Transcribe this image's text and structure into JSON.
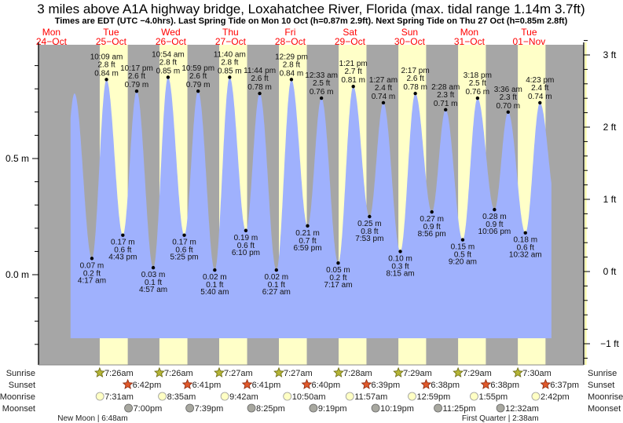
{
  "title": "3 miles above A1A highway bridge, Loxahatchee River, Florida (max. tidal range 1.14m 3.7ft)",
  "subtitle": "Times are EDT (UTC −4.0hrs). Last Spring Tide on Mon 10 Oct (h=0.87m 2.9ft). Next Spring Tide on Thu 27 Oct (h=0.85m 2.8ft)",
  "days": [
    {
      "dow": "Mon",
      "date": "24−Oct"
    },
    {
      "dow": "Tue",
      "date": "25−Oct"
    },
    {
      "dow": "Wed",
      "date": "26−Oct"
    },
    {
      "dow": "Thu",
      "date": "27−Oct"
    },
    {
      "dow": "Fri",
      "date": "28−Oct"
    },
    {
      "dow": "Sat",
      "date": "29−Oct"
    },
    {
      "dow": "Sun",
      "date": "30−Oct"
    },
    {
      "dow": "Mon",
      "date": "31−Oct"
    },
    {
      "dow": "Tue",
      "date": "01−Nov"
    }
  ],
  "colors": {
    "night": "#a6a6a6",
    "day": "#ffffc8",
    "water": "#9fb1fd",
    "day_label": "#ff0000",
    "sunrise": "#b5b536",
    "sunset": "#e0582a",
    "moonrise": "#ffffc4",
    "moonset": "#a8a8a0"
  },
  "chart_data": {
    "type": "area",
    "title": "3 miles above A1A highway bridge, Loxahatchee River, Florida",
    "y_left": {
      "unit": "m",
      "ylim": [
        -0.3,
        0.95
      ],
      "labels": [
        {
          "v": 0.5,
          "text": "0.5 m"
        },
        {
          "v": 0.0,
          "text": "0.0 m"
        }
      ]
    },
    "y_right": {
      "unit": "ft",
      "labels": [
        {
          "v": 3,
          "text": "3 ft"
        },
        {
          "v": 2,
          "text": "2 ft"
        },
        {
          "v": 1,
          "text": "1 ft"
        },
        {
          "v": 0,
          "text": "0 ft"
        },
        {
          "v": -1,
          "text": "−1 ft"
        }
      ]
    },
    "curve_range": {
      "start": {
        "day": 0,
        "hour": 19.7
      },
      "end": {
        "day": 8,
        "hour": 21.0
      }
    },
    "unlabeled_extremes": [
      {
        "day": 0,
        "hour": 15.2,
        "value": 0.12
      },
      {
        "day": 0,
        "hour": 21.3,
        "value": 0.78
      },
      {
        "day": 8,
        "hour": 23.0,
        "value": 0.3
      }
    ],
    "tides": [
      {
        "day": 1,
        "type": "low",
        "time": "4:17 am",
        "value": 0.07,
        "m": "0.07 m",
        "ft": "0.2 ft"
      },
      {
        "day": 1,
        "type": "high",
        "time": "10:09 am",
        "value": 0.84,
        "m": "0.84 m",
        "ft": "2.8 ft"
      },
      {
        "day": 1,
        "type": "low",
        "time": "4:43 pm",
        "value": 0.17,
        "m": "0.17 m",
        "ft": "0.6 ft"
      },
      {
        "day": 1,
        "type": "high",
        "time": "10:17 pm",
        "value": 0.79,
        "m": "0.79 m",
        "ft": "2.6 ft"
      },
      {
        "day": 2,
        "type": "low",
        "time": "4:57 am",
        "value": 0.03,
        "m": "0.03 m",
        "ft": "0.1 ft"
      },
      {
        "day": 2,
        "type": "high",
        "time": "10:54 am",
        "value": 0.85,
        "m": "0.85 m",
        "ft": "2.8 ft"
      },
      {
        "day": 2,
        "type": "low",
        "time": "5:25 pm",
        "value": 0.17,
        "m": "0.17 m",
        "ft": "0.6 ft"
      },
      {
        "day": 2,
        "type": "high",
        "time": "10:59 pm",
        "value": 0.79,
        "m": "0.79 m",
        "ft": "2.6 ft"
      },
      {
        "day": 3,
        "type": "low",
        "time": "5:40 am",
        "value": 0.02,
        "m": "0.02 m",
        "ft": "0.1 ft"
      },
      {
        "day": 3,
        "type": "high",
        "time": "11:40 am",
        "value": 0.85,
        "m": "0.85 m",
        "ft": "2.8 ft"
      },
      {
        "day": 3,
        "type": "low",
        "time": "6:10 pm",
        "value": 0.19,
        "m": "0.19 m",
        "ft": "0.6 ft"
      },
      {
        "day": 3,
        "type": "high",
        "time": "11:44 pm",
        "value": 0.78,
        "m": "0.78 m",
        "ft": "2.6 ft"
      },
      {
        "day": 4,
        "type": "low",
        "time": "6:27 am",
        "value": 0.02,
        "m": "0.02 m",
        "ft": "0.1 ft"
      },
      {
        "day": 4,
        "type": "high",
        "time": "12:29 pm",
        "value": 0.84,
        "m": "0.84 m",
        "ft": "2.8 ft"
      },
      {
        "day": 4,
        "type": "low",
        "time": "6:59 pm",
        "value": 0.21,
        "m": "0.21 m",
        "ft": "0.7 ft"
      },
      {
        "day": 5,
        "type": "high",
        "time": "12:33 am",
        "value": 0.76,
        "m": "0.76 m",
        "ft": "2.5 ft"
      },
      {
        "day": 5,
        "type": "low",
        "time": "7:17 am",
        "value": 0.05,
        "m": "0.05 m",
        "ft": "0.2 ft"
      },
      {
        "day": 5,
        "type": "high",
        "time": "1:21 pm",
        "value": 0.81,
        "m": "0.81 m",
        "ft": "2.7 ft"
      },
      {
        "day": 5,
        "type": "low",
        "time": "7:53 pm",
        "value": 0.25,
        "m": "0.25 m",
        "ft": "0.8 ft"
      },
      {
        "day": 6,
        "type": "high",
        "time": "1:27 am",
        "value": 0.74,
        "m": "0.74 m",
        "ft": "2.4 ft"
      },
      {
        "day": 6,
        "type": "low",
        "time": "8:15 am",
        "value": 0.1,
        "m": "0.10 m",
        "ft": "0.3 ft"
      },
      {
        "day": 6,
        "type": "high",
        "time": "2:17 pm",
        "value": 0.78,
        "m": "0.78 m",
        "ft": "2.6 ft"
      },
      {
        "day": 6,
        "type": "low",
        "time": "8:56 pm",
        "value": 0.27,
        "m": "0.27 m",
        "ft": "0.9 ft"
      },
      {
        "day": 7,
        "type": "high",
        "time": "2:28 am",
        "value": 0.71,
        "m": "0.71 m",
        "ft": "2.3 ft"
      },
      {
        "day": 7,
        "type": "low",
        "time": "9:20 am",
        "value": 0.15,
        "m": "0.15 m",
        "ft": "0.5 ft"
      },
      {
        "day": 7,
        "type": "high",
        "time": "3:18 pm",
        "value": 0.76,
        "m": "0.76 m",
        "ft": "2.5 ft"
      },
      {
        "day": 7,
        "type": "low",
        "time": "10:06 pm",
        "value": 0.28,
        "m": "0.28 m",
        "ft": "0.9 ft"
      },
      {
        "day": 8,
        "type": "high",
        "time": "3:36 am",
        "value": 0.7,
        "m": "0.70 m",
        "ft": "2.3 ft"
      },
      {
        "day": 8,
        "type": "low",
        "time": "10:32 am",
        "value": 0.18,
        "m": "0.18 m",
        "ft": "0.6 ft"
      },
      {
        "day": 8,
        "type": "high",
        "time": "4:23 pm",
        "value": 0.74,
        "m": "0.74 m",
        "ft": "2.4 ft"
      }
    ]
  },
  "rows": {
    "labels": {
      "sunrise": "Sunrise",
      "sunset": "Sunset",
      "moonrise": "Moonrise",
      "moonset": "Moonset"
    },
    "sunrise": [
      {
        "day": 1,
        "t": "7:26am"
      },
      {
        "day": 2,
        "t": "7:26am"
      },
      {
        "day": 3,
        "t": "7:27am"
      },
      {
        "day": 4,
        "t": "7:27am"
      },
      {
        "day": 5,
        "t": "7:28am"
      },
      {
        "day": 6,
        "t": "7:29am"
      },
      {
        "day": 7,
        "t": "7:29am"
      },
      {
        "day": 8,
        "t": "7:30am"
      }
    ],
    "sunset": [
      {
        "day": 1,
        "t": "6:42pm"
      },
      {
        "day": 2,
        "t": "6:41pm"
      },
      {
        "day": 3,
        "t": "6:41pm"
      },
      {
        "day": 4,
        "t": "6:40pm"
      },
      {
        "day": 5,
        "t": "6:39pm"
      },
      {
        "day": 6,
        "t": "6:38pm"
      },
      {
        "day": 7,
        "t": "6:38pm"
      },
      {
        "day": 8,
        "t": "6:37pm"
      }
    ],
    "moonrise": [
      {
        "day": 1,
        "t": "7:31am"
      },
      {
        "day": 2,
        "t": "8:35am"
      },
      {
        "day": 3,
        "t": "9:42am"
      },
      {
        "day": 4,
        "t": "10:50am"
      },
      {
        "day": 5,
        "t": "11:57am"
      },
      {
        "day": 6,
        "t": "12:59pm"
      },
      {
        "day": 7,
        "t": "1:55pm"
      },
      {
        "day": 8,
        "t": "2:42pm"
      }
    ],
    "moonset": [
      {
        "day": 1,
        "t": "7:00pm"
      },
      {
        "day": 2,
        "t": "7:39pm"
      },
      {
        "day": 3,
        "t": "8:25pm"
      },
      {
        "day": 4,
        "t": "9:19pm"
      },
      {
        "day": 5,
        "t": "10:19pm"
      },
      {
        "day": 6,
        "t": "11:25pm"
      },
      {
        "day": 8,
        "t": "12:32am"
      }
    ],
    "phases": [
      {
        "day": 1,
        "t": "6:48am",
        "text": "New Moon | 6:48am"
      },
      {
        "day": 8,
        "t": "2:38am",
        "text": "First Quarter | 2:38am"
      }
    ]
  }
}
